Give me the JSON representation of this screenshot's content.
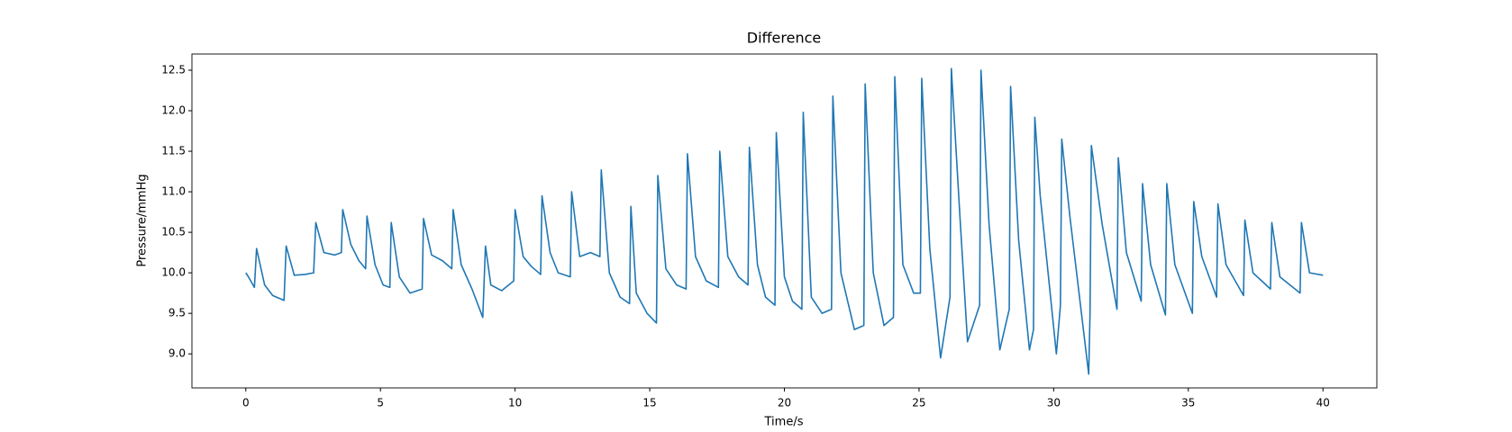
{
  "chart_data": {
    "type": "line",
    "title": "Difference",
    "xlabel": "Time/s",
    "ylabel": "Pressure/mmHg",
    "color": "#1f77b4",
    "xlim": [
      -2,
      42
    ],
    "ylim": [
      8.58,
      12.7
    ],
    "xticks": [
      0,
      5,
      10,
      15,
      20,
      25,
      30,
      35,
      40
    ],
    "yticks": [
      {
        "value": 9,
        "label": "9.0"
      },
      9.5,
      {
        "value": 10,
        "label": "10.0"
      },
      10.5,
      {
        "value": 11,
        "label": "11.0"
      },
      11.5,
      {
        "value": 12,
        "label": "12.0"
      },
      12.5
    ],
    "x": [
      0,
      0.1,
      0.32,
      0.4,
      0.7,
      1.0,
      1.42,
      1.5,
      1.8,
      2.2,
      2.52,
      2.6,
      2.9,
      3.3,
      3.55,
      3.6,
      3.9,
      4.2,
      4.45,
      4.5,
      4.8,
      5.1,
      5.35,
      5.4,
      5.7,
      6.1,
      6.55,
      6.6,
      6.9,
      7.3,
      7.65,
      7.7,
      8.0,
      8.4,
      8.8,
      8.9,
      9.1,
      9.5,
      9.95,
      10.0,
      10.3,
      10.6,
      10.95,
      11.0,
      11.3,
      11.6,
      12.05,
      12.1,
      12.4,
      12.8,
      13.15,
      13.2,
      13.5,
      13.9,
      14.25,
      14.3,
      14.5,
      14.9,
      15.25,
      15.3,
      15.6,
      16.0,
      16.35,
      16.4,
      16.7,
      17.1,
      17.55,
      17.6,
      17.9,
      18.3,
      18.65,
      18.7,
      19.0,
      19.3,
      19.65,
      19.7,
      20.0,
      20.3,
      20.65,
      20.7,
      21.0,
      21.4,
      21.75,
      21.8,
      22.1,
      22.6,
      22.95,
      23.0,
      23.3,
      23.7,
      24.05,
      24.1,
      24.4,
      24.8,
      25.05,
      25.1,
      25.4,
      25.8,
      26.15,
      26.2,
      26.5,
      26.8,
      27.25,
      27.3,
      27.6,
      28.0,
      28.35,
      28.4,
      28.7,
      29.1,
      29.25,
      29.3,
      29.5,
      30.1,
      30.25,
      30.3,
      30.6,
      31.3,
      31.35,
      31.4,
      31.8,
      32.35,
      32.4,
      32.7,
      33.25,
      33.3,
      33.6,
      34.15,
      34.2,
      34.5,
      35.15,
      35.2,
      35.5,
      36.05,
      36.1,
      36.4,
      37.05,
      37.1,
      37.4,
      38.05,
      38.1,
      38.4,
      39.15,
      39.2,
      39.5,
      40.0
    ],
    "values": [
      10.0,
      9.95,
      9.82,
      10.3,
      9.85,
      9.72,
      9.66,
      10.33,
      9.97,
      9.98,
      10.0,
      10.62,
      10.25,
      10.22,
      10.25,
      10.78,
      10.35,
      10.15,
      10.05,
      10.7,
      10.1,
      9.85,
      9.82,
      10.62,
      9.95,
      9.75,
      9.8,
      10.67,
      10.22,
      10.15,
      10.05,
      10.78,
      10.1,
      9.8,
      9.45,
      10.33,
      9.85,
      9.78,
      9.9,
      10.78,
      10.2,
      10.08,
      9.98,
      10.95,
      10.25,
      10.0,
      9.95,
      11.0,
      10.2,
      10.25,
      10.2,
      11.27,
      10.0,
      9.7,
      9.62,
      10.82,
      9.75,
      9.5,
      9.38,
      11.2,
      10.05,
      9.85,
      9.8,
      11.47,
      10.2,
      9.9,
      9.82,
      11.5,
      10.2,
      9.95,
      9.85,
      11.55,
      10.1,
      9.7,
      9.6,
      11.73,
      9.95,
      9.65,
      9.55,
      11.98,
      9.7,
      9.5,
      9.55,
      12.18,
      10.0,
      9.3,
      9.35,
      12.33,
      10.0,
      9.35,
      9.45,
      12.42,
      10.1,
      9.75,
      9.75,
      12.4,
      10.3,
      8.95,
      9.7,
      12.52,
      10.8,
      9.15,
      9.6,
      12.5,
      10.6,
      9.05,
      9.55,
      12.3,
      10.4,
      9.05,
      9.3,
      11.92,
      10.95,
      9.0,
      9.6,
      11.65,
      10.7,
      8.75,
      9.5,
      11.57,
      10.6,
      9.55,
      11.42,
      10.25,
      9.65,
      11.1,
      10.1,
      9.48,
      11.1,
      10.1,
      9.5,
      10.88,
      10.2,
      9.7,
      10.85,
      10.1,
      9.72,
      10.65,
      10.0,
      9.8,
      10.62,
      9.95,
      9.75,
      10.62,
      10.0,
      9.97
    ]
  }
}
